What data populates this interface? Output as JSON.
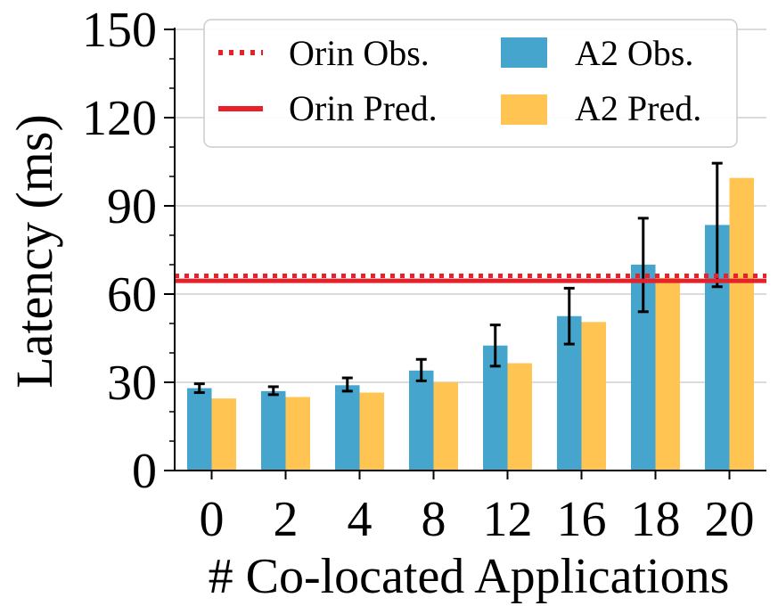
{
  "chart_data": {
    "type": "bar",
    "title": "",
    "xlabel": "# Co-located Applications",
    "ylabel": "Latency (ms)",
    "categories": [
      "0",
      "2",
      "4",
      "8",
      "12",
      "16",
      "18",
      "20"
    ],
    "ylim": [
      0,
      150
    ],
    "yticks": [
      "0",
      "30",
      "60",
      "90",
      "120",
      "150"
    ],
    "grid": "horizontal",
    "legend_placement": "top",
    "series": [
      {
        "name": "A2 Obs.",
        "color": "#45a5cd",
        "values": [
          28,
          27,
          29,
          34,
          42.5,
          52.5,
          70,
          83.5
        ],
        "error_low": [
          26.5,
          25.8,
          27,
          30.5,
          35.5,
          43,
          54,
          62.5
        ],
        "error_high": [
          29.5,
          28.5,
          31.5,
          37.8,
          49.5,
          62,
          85.8,
          104.5
        ]
      },
      {
        "name": "A2 Pred.",
        "color": "#ffc452",
        "values": [
          24.5,
          25,
          26.5,
          30,
          36.5,
          50.5,
          65.5,
          99.5
        ]
      }
    ],
    "reference_lines": [
      {
        "name": "Orin Obs.",
        "value": 66.2,
        "style": "dotted",
        "color": "#e8202a"
      },
      {
        "name": "Orin Pred.",
        "value": 64.5,
        "style": "solid",
        "color": "#e8202a"
      }
    ]
  }
}
